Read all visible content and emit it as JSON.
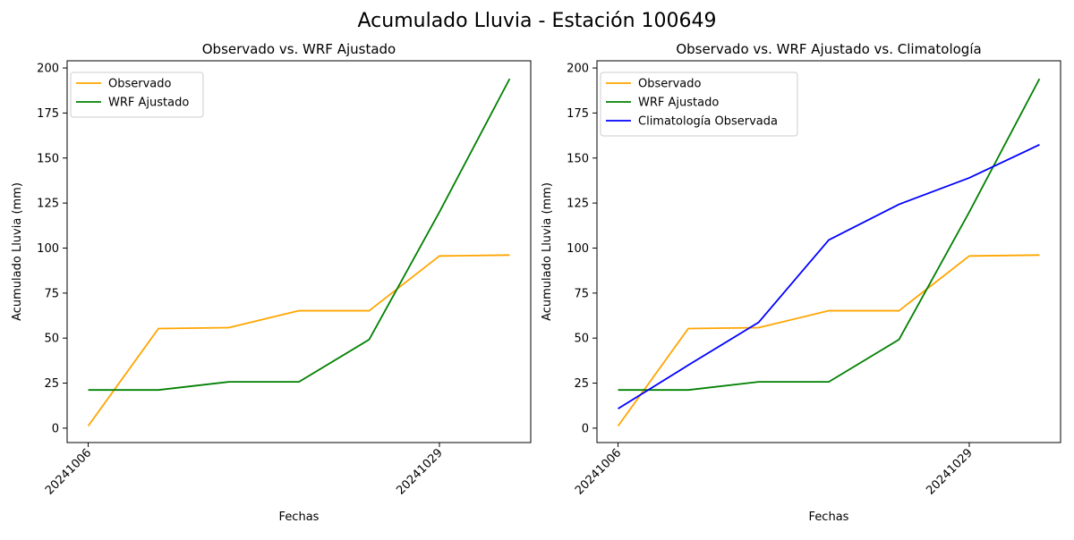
{
  "figure": {
    "suptitle": "Acumulado Lluvia - Estación 100649"
  },
  "chart_data": [
    {
      "type": "line",
      "title": "Observado vs. WRF Ajustado",
      "xlabel": "Fechas",
      "ylabel": "Acumulado Lluvia (mm)",
      "x": [
        "20241006",
        "",
        "",
        "",
        "",
        "20241029",
        ""
      ],
      "xtick_labels": [
        "20241006",
        "20241029"
      ],
      "ylim": [
        -8,
        204
      ],
      "yticks": [
        0,
        25,
        50,
        75,
        100,
        125,
        150,
        175,
        200
      ],
      "grid": false,
      "legend_position": "upper left",
      "series": [
        {
          "name": "Observado",
          "color": "#ffa500",
          "values": [
            1.2,
            55.3,
            55.8,
            65.2,
            65.2,
            95.6,
            96.1
          ]
        },
        {
          "name": "WRF Ajustado",
          "color": "#008000",
          "values": [
            21.2,
            21.2,
            25.7,
            25.7,
            49.2,
            120.0,
            194.0
          ]
        }
      ]
    },
    {
      "type": "line",
      "title": "Observado vs. WRF Ajustado vs. Climatología",
      "xlabel": "Fechas",
      "ylabel": "Acumulado Lluvia (mm)",
      "x": [
        "20241006",
        "",
        "",
        "",
        "",
        "20241029",
        ""
      ],
      "xtick_labels": [
        "20241006",
        "20241029"
      ],
      "ylim": [
        -8,
        204
      ],
      "yticks": [
        0,
        25,
        50,
        75,
        100,
        125,
        150,
        175,
        200
      ],
      "grid": false,
      "legend_position": "upper left",
      "series": [
        {
          "name": "Observado",
          "color": "#ffa500",
          "values": [
            1.2,
            55.3,
            55.8,
            65.2,
            65.2,
            95.6,
            96.1
          ]
        },
        {
          "name": "WRF Ajustado",
          "color": "#008000",
          "values": [
            21.2,
            21.2,
            25.7,
            25.7,
            49.2,
            120.0,
            194.0
          ]
        },
        {
          "name": "Climatología Observada",
          "color": "#0000ff",
          "values": [
            10.8,
            35.0,
            58.7,
            104.5,
            124.3,
            139.0,
            157.4
          ]
        }
      ]
    }
  ]
}
